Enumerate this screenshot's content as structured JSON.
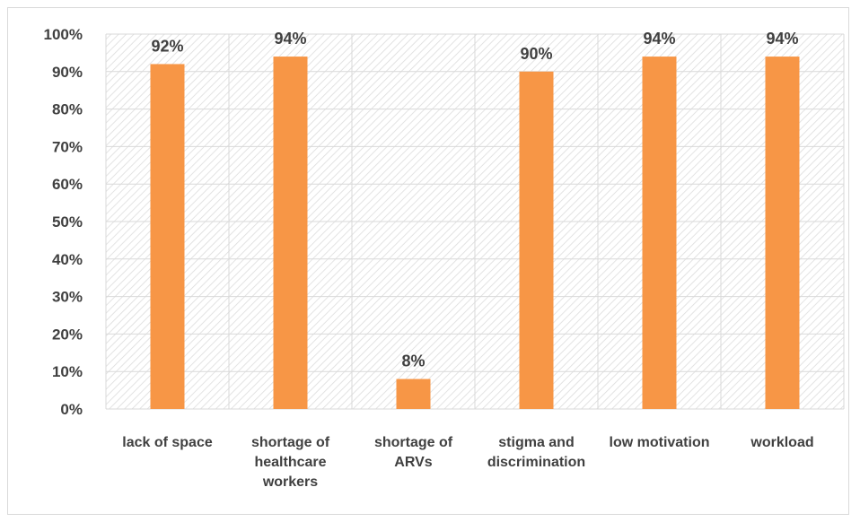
{
  "chart_data": {
    "type": "bar",
    "title": "",
    "xlabel": "",
    "ylabel": "",
    "categories": [
      [
        "lack of space"
      ],
      [
        "shortage of",
        "healthcare",
        "workers"
      ],
      [
        "shortage of",
        "ARVs"
      ],
      [
        "stigma and",
        "discrimination"
      ],
      [
        "low motivation"
      ],
      [
        "workload"
      ]
    ],
    "values": [
      92,
      94,
      8,
      90,
      94,
      94
    ],
    "data_labels": [
      "92%",
      "94%",
      "8%",
      "90%",
      "94%",
      "94%"
    ],
    "y_ticks": [
      "0%",
      "10%",
      "20%",
      "30%",
      "40%",
      "50%",
      "60%",
      "70%",
      "80%",
      "90%",
      "100%"
    ],
    "ylim": [
      0,
      100
    ],
    "grid": true,
    "plot_background": "diagonal-hatch",
    "legend": "none",
    "colors": {
      "bar": "#f79646",
      "grid": "#d9d9d9",
      "hatch": "#d9d9d9",
      "text": "#404040"
    }
  }
}
